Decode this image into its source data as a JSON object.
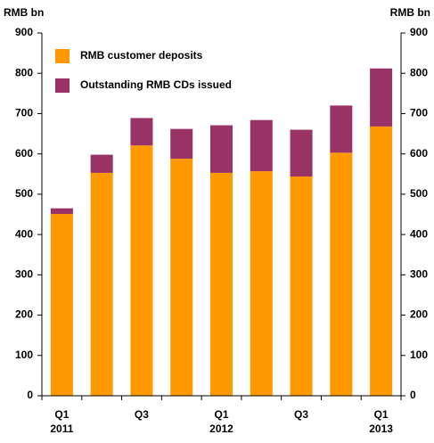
{
  "chart_data": {
    "type": "stacked_bar",
    "y_label": "RMB bn",
    "y2_label": "RMB bn",
    "categories": [
      "Q1 2011",
      null,
      "Q3",
      null,
      "Q1 2012",
      null,
      "Q3",
      null,
      "Q1 2013"
    ],
    "series": [
      {
        "name": "RMB customer deposits",
        "color": "#ff9900",
        "values": [
          451,
          553,
          621,
          588,
          553,
          557,
          544,
          603,
          668
        ]
      },
      {
        "name": "Outstanding RMB CDs issued",
        "color": "#993366",
        "values": [
          14,
          45,
          68,
          74,
          118,
          127,
          116,
          117,
          144
        ]
      }
    ],
    "ylim": [
      0,
      900
    ],
    "yticks": [
      0,
      100,
      200,
      300,
      400,
      500,
      600,
      700,
      800,
      900
    ],
    "y2lim": [
      0,
      900
    ],
    "y2ticks": [
      0,
      100,
      200,
      300,
      400,
      500,
      600,
      700,
      800,
      900
    ],
    "legend": "upper left"
  }
}
